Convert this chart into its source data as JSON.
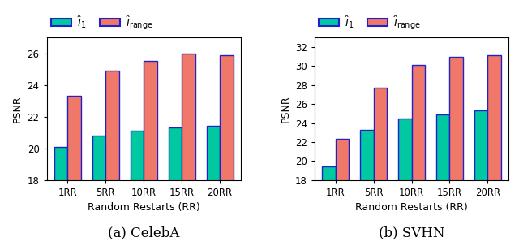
{
  "categories": [
    "1RR",
    "5RR",
    "10RR",
    "15RR",
    "20RR"
  ],
  "celeba": {
    "i1": [
      20.1,
      20.8,
      21.1,
      21.3,
      21.4
    ],
    "irange": [
      23.3,
      24.9,
      25.5,
      26.0,
      25.9
    ]
  },
  "svhn": {
    "i1": [
      19.4,
      23.3,
      24.5,
      24.9,
      25.3
    ],
    "irange": [
      22.3,
      27.7,
      30.1,
      31.0,
      31.1
    ]
  },
  "ylim_celeba": [
    18,
    27
  ],
  "ylim_svhn": [
    18,
    33
  ],
  "yticks_celeba": [
    18,
    20,
    22,
    24,
    26
  ],
  "yticks_svhn": [
    18,
    20,
    22,
    24,
    26,
    28,
    30,
    32
  ],
  "color_i1": "#00C8A0",
  "color_irange": "#F07868",
  "edge_color": "#2020CC",
  "xlabel": "Random Restarts (RR)",
  "ylabel": "PSNR",
  "label_celeba": "(a) CelebA",
  "label_svhn": "(b) SVHN",
  "legend_i1": "$\\hat{\\imath}_1$",
  "legend_irange": "$\\hat{\\imath}_{\\mathrm{range}}$",
  "bar_width": 0.35,
  "tick_fontsize": 8.5,
  "label_fontsize": 9,
  "legend_fontsize": 10,
  "subtitle_fontsize": 12
}
